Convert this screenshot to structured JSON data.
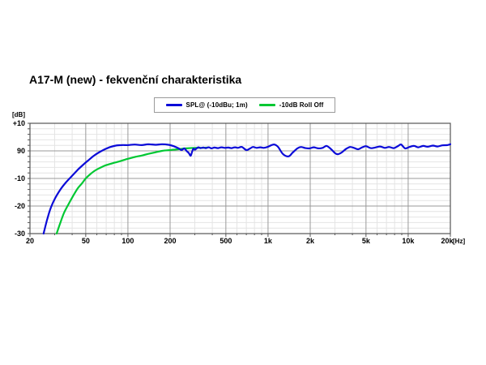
{
  "title": "A17-M (new) - fekvenční charakteristika",
  "legend": {
    "items": [
      {
        "label": "SPL@ (-10dBu; 1m)",
        "color": "#0b0bd8"
      },
      {
        "label": "-10dB Roll Off",
        "color": "#00c832"
      }
    ]
  },
  "chart_data": {
    "type": "line",
    "title": "A17-M (new) - fekvenční charakteristika",
    "x_axis": {
      "scale": "log",
      "min": 20,
      "max": 20000,
      "unit_label": "[Hz]",
      "ticks": [
        {
          "value": 20,
          "label": "20"
        },
        {
          "value": 50,
          "label": "50"
        },
        {
          "value": 100,
          "label": "100"
        },
        {
          "value": 200,
          "label": "200"
        },
        {
          "value": 500,
          "label": "500"
        },
        {
          "value": 1000,
          "label": "1k"
        },
        {
          "value": 2000,
          "label": "2k"
        },
        {
          "value": 5000,
          "label": "5k"
        },
        {
          "value": 10000,
          "label": "10k"
        },
        {
          "value": 20000,
          "label": "20k"
        }
      ]
    },
    "y_axis": {
      "min": -30,
      "max": 10,
      "minor_step": 2,
      "unit_label": "[dB]",
      "ticks": [
        {
          "value": 10,
          "label": "+10"
        },
        {
          "value": 0,
          "label": "90"
        },
        {
          "value": -10,
          "label": "-10"
        },
        {
          "value": -20,
          "label": "-20"
        },
        {
          "value": -30,
          "label": "-30"
        }
      ]
    },
    "grid": {
      "major_color": "#999999",
      "minor_color": "#e4e4e4",
      "border_color": "#555555",
      "grid_on": true
    },
    "legend_position": "top",
    "series": [
      {
        "name": "SPL@ (-10dBu; 1m)",
        "color": "#0b0bd8",
        "points": [
          [
            25,
            -30
          ],
          [
            26.5,
            -25
          ],
          [
            28,
            -21
          ],
          [
            30,
            -17.5
          ],
          [
            33,
            -14
          ],
          [
            36,
            -11.5
          ],
          [
            40,
            -9
          ],
          [
            44,
            -6.8
          ],
          [
            48,
            -5
          ],
          [
            52,
            -3.5
          ],
          [
            57,
            -1.8
          ],
          [
            62,
            -0.6
          ],
          [
            68,
            0.5
          ],
          [
            75,
            1.4
          ],
          [
            82,
            1.9
          ],
          [
            90,
            2.1
          ],
          [
            100,
            2.1
          ],
          [
            112,
            2.3
          ],
          [
            125,
            2.1
          ],
          [
            140,
            2.4
          ],
          [
            158,
            2.2
          ],
          [
            175,
            2.4
          ],
          [
            195,
            2.2
          ],
          [
            212,
            1.7
          ],
          [
            230,
            0.9
          ],
          [
            242,
            0.3
          ],
          [
            252,
            0.9
          ],
          [
            262,
            0.0
          ],
          [
            272,
            -0.8
          ],
          [
            280,
            -1.8
          ],
          [
            286,
            -0.6
          ],
          [
            293,
            0.8
          ],
          [
            300,
            0.4
          ],
          [
            308,
            0.8
          ],
          [
            318,
            1.3
          ],
          [
            330,
            1.0
          ],
          [
            345,
            1.2
          ],
          [
            360,
            1.0
          ],
          [
            378,
            1.3
          ],
          [
            395,
            0.9
          ],
          [
            415,
            1.2
          ],
          [
            440,
            1.0
          ],
          [
            465,
            1.3
          ],
          [
            490,
            1.1
          ],
          [
            520,
            1.2
          ],
          [
            550,
            1.0
          ],
          [
            580,
            1.3
          ],
          [
            610,
            1.1
          ],
          [
            650,
            1.4
          ],
          [
            700,
            0.3
          ],
          [
            740,
            0.8
          ],
          [
            780,
            1.4
          ],
          [
            830,
            1.1
          ],
          [
            880,
            1.3
          ],
          [
            930,
            1.1
          ],
          [
            990,
            1.4
          ],
          [
            1050,
            2.0
          ],
          [
            1110,
            2.3
          ],
          [
            1180,
            1.4
          ],
          [
            1280,
            -1.2
          ],
          [
            1400,
            -2.0
          ],
          [
            1500,
            -0.6
          ],
          [
            1620,
            0.9
          ],
          [
            1720,
            1.4
          ],
          [
            1850,
            1.0
          ],
          [
            1980,
            0.9
          ],
          [
            2120,
            1.3
          ],
          [
            2280,
            0.9
          ],
          [
            2450,
            1.1
          ],
          [
            2620,
            1.8
          ],
          [
            2820,
            0.6
          ],
          [
            3000,
            -0.8
          ],
          [
            3150,
            -1.2
          ],
          [
            3350,
            -0.6
          ],
          [
            3600,
            0.7
          ],
          [
            3850,
            1.4
          ],
          [
            4100,
            1.1
          ],
          [
            4400,
            0.6
          ],
          [
            4700,
            1.3
          ],
          [
            5000,
            1.7
          ],
          [
            5400,
            1.0
          ],
          [
            5800,
            1.2
          ],
          [
            6300,
            1.6
          ],
          [
            6800,
            1.1
          ],
          [
            7300,
            1.4
          ],
          [
            7900,
            1.0
          ],
          [
            8500,
            1.8
          ],
          [
            8900,
            2.3
          ],
          [
            9500,
            0.9
          ],
          [
            10200,
            1.4
          ],
          [
            11000,
            1.8
          ],
          [
            11800,
            1.3
          ],
          [
            12800,
            1.8
          ],
          [
            13800,
            1.5
          ],
          [
            15000,
            1.9
          ],
          [
            16200,
            1.6
          ],
          [
            17500,
            2.0
          ],
          [
            19000,
            2.1
          ],
          [
            20000,
            2.4
          ]
        ]
      },
      {
        "name": "-10dB Roll Off",
        "color": "#00c832",
        "points": [
          [
            31,
            -30
          ],
          [
            33,
            -26
          ],
          [
            35,
            -22.5
          ],
          [
            38,
            -19
          ],
          [
            41,
            -16
          ],
          [
            44,
            -13.5
          ],
          [
            47,
            -11.8
          ],
          [
            50,
            -10
          ],
          [
            54,
            -8.4
          ],
          [
            58,
            -7.2
          ],
          [
            63,
            -6.2
          ],
          [
            68,
            -5.4
          ],
          [
            74,
            -4.8
          ],
          [
            80,
            -4.3
          ],
          [
            87,
            -3.8
          ],
          [
            95,
            -3.2
          ],
          [
            105,
            -2.6
          ],
          [
            115,
            -2.1
          ],
          [
            128,
            -1.6
          ],
          [
            142,
            -1.0
          ],
          [
            158,
            -0.5
          ],
          [
            175,
            0.0
          ],
          [
            200,
            0.3
          ],
          [
            230,
            0.6
          ],
          [
            260,
            0.9
          ],
          [
            300,
            1.1
          ],
          [
            340,
            1.1
          ],
          [
            370,
            1.2
          ]
        ]
      }
    ]
  }
}
